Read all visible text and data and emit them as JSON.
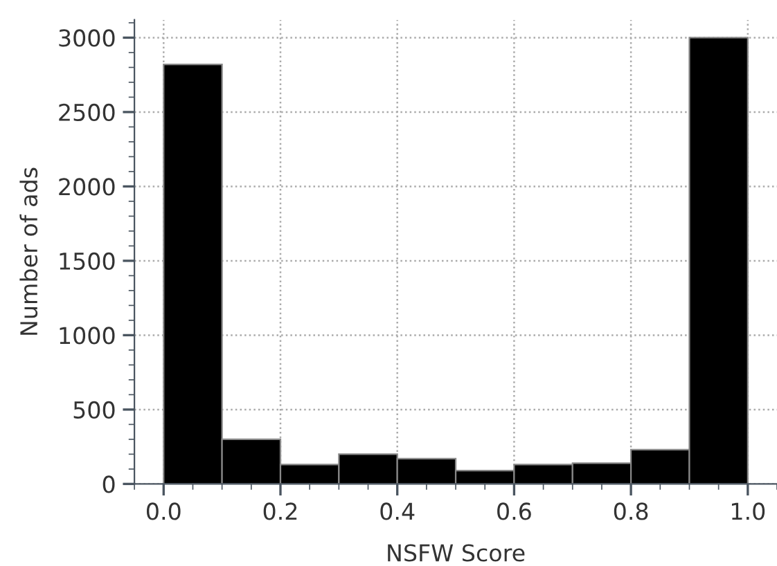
{
  "chart_data": {
    "type": "histogram",
    "xlabel": "NSFW Score",
    "ylabel": "Number of ads",
    "bins": [
      0.0,
      0.1,
      0.2,
      0.3,
      0.4,
      0.5,
      0.6,
      0.7,
      0.8,
      0.9,
      1.0
    ],
    "values": [
      2820,
      300,
      130,
      200,
      170,
      90,
      130,
      140,
      230,
      3000
    ],
    "color": "#000000",
    "xlim": [
      -0.05,
      1.05
    ],
    "xticks": [
      {
        "value": 0,
        "label": "0.0"
      },
      {
        "value": 0.2,
        "label": "0.2"
      },
      {
        "value": 0.4,
        "label": "0.4"
      },
      {
        "value": 0.6,
        "label": "0.6"
      },
      {
        "value": 0.8,
        "label": "0.8"
      },
      {
        "value": 1,
        "label": "1.0"
      }
    ],
    "ylim": [
      0,
      3120
    ],
    "yticks": [
      0,
      500,
      1000,
      1500,
      2000,
      2500,
      3000
    ],
    "grid": true
  }
}
